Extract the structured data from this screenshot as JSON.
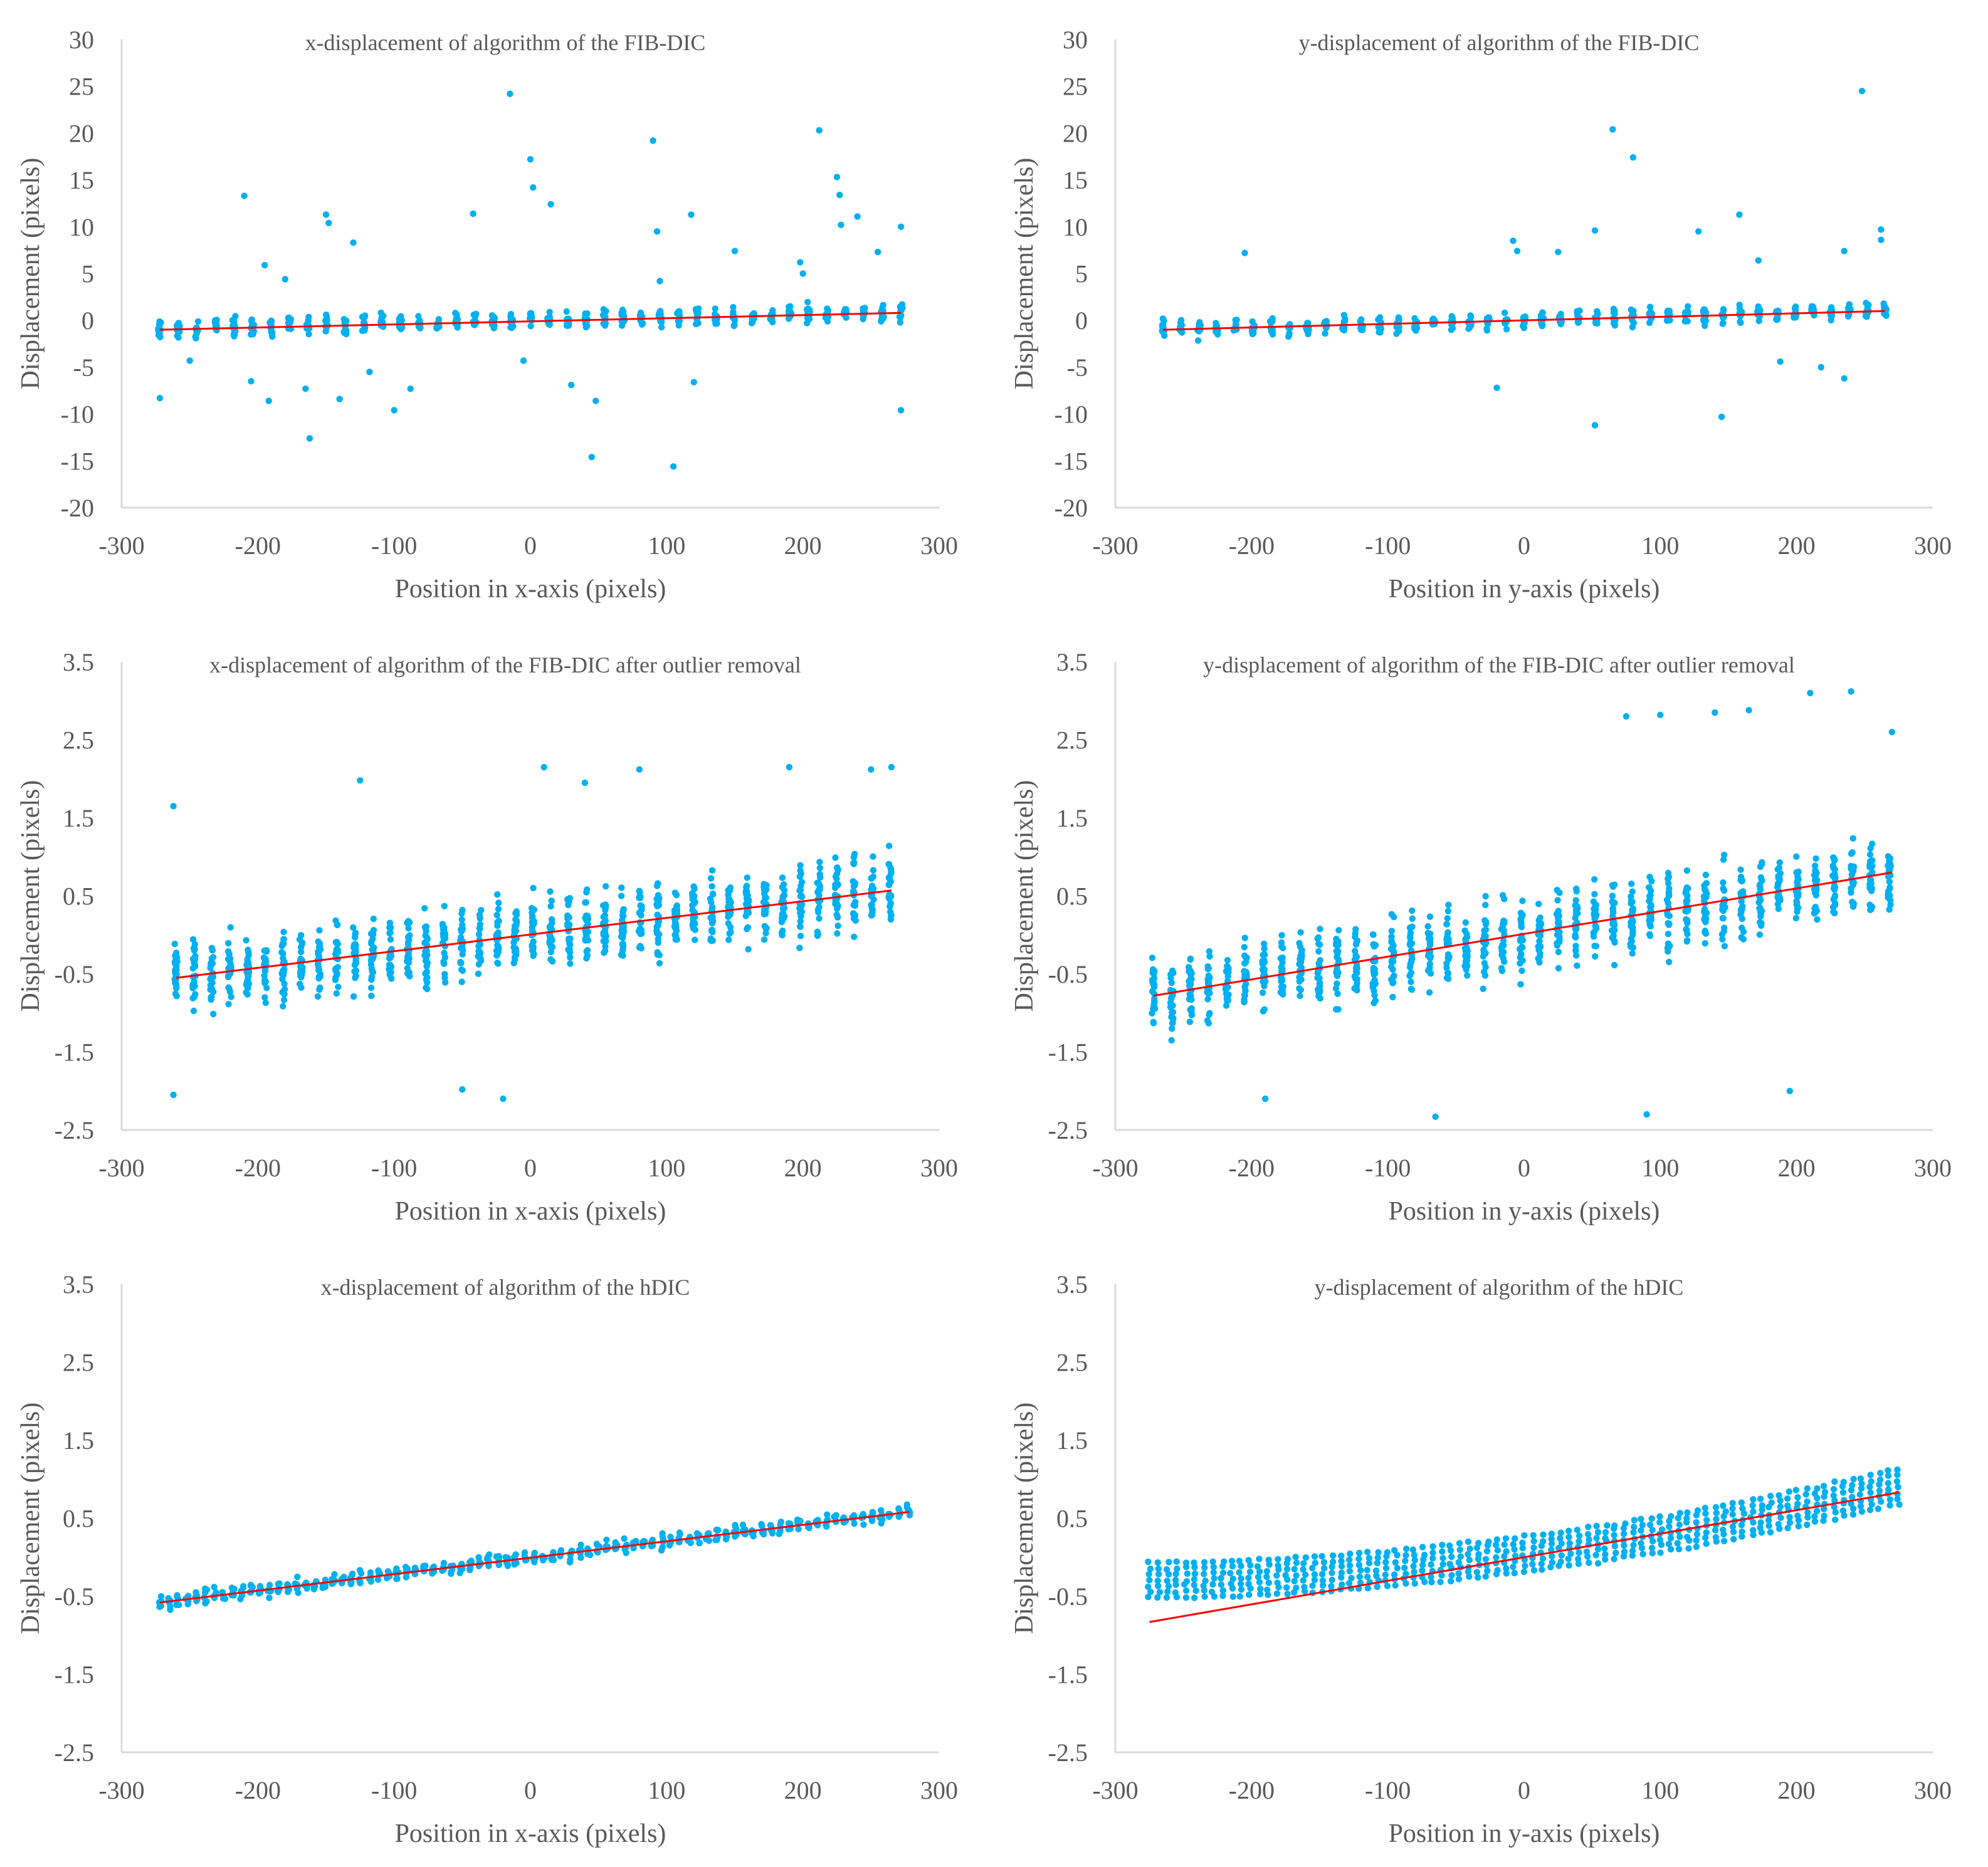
{
  "colors": {
    "points": "#00b0f0",
    "trendline": "#ff0000",
    "axis": "#d9d9d9",
    "text": "#595959"
  },
  "chart_data": [
    {
      "id": "p1",
      "type": "scatter",
      "title": "x-displacement of algorithm of the FIB-DIC",
      "xlabel": "Position in x-axis (pixels)",
      "ylabel": "Displacement  (pixels)",
      "xlim": [
        -300,
        300
      ],
      "ylim": [
        -20,
        30
      ],
      "xticks": [
        -300,
        -200,
        -100,
        0,
        100,
        200,
        300
      ],
      "xtick_labels": [
        "-300",
        "-200",
        "-100",
        "0",
        "100",
        "200",
        "300"
      ],
      "yticks": [
        -20,
        -15,
        -10,
        -5,
        0,
        5,
        10,
        15,
        20,
        25,
        30
      ],
      "ytick_labels": [
        "-20",
        "-15",
        "-10",
        "-5",
        "0",
        "5",
        "10",
        "15",
        "20",
        "25",
        "30"
      ],
      "trendline": {
        "x": [
          -272,
          272
        ],
        "y": [
          -1.0,
          0.8
        ]
      },
      "clusters": {
        "x_start": -272,
        "x_step": 13.6,
        "count": 41,
        "center": "0.0033*x",
        "spread": 1.6,
        "per_column": 12
      },
      "outliers": [
        [
          -272,
          -8.3
        ],
        [
          -250,
          -4.3
        ],
        [
          -210,
          13.3
        ],
        [
          -205,
          -6.5
        ],
        [
          -195,
          5.9
        ],
        [
          -192,
          -8.6
        ],
        [
          -180,
          4.4
        ],
        [
          -165,
          -7.3
        ],
        [
          -162,
          -12.6
        ],
        [
          -150,
          11.3
        ],
        [
          -148,
          10.4
        ],
        [
          -140,
          -8.4
        ],
        [
          -130,
          8.3
        ],
        [
          -118,
          -5.5
        ],
        [
          -100,
          -9.6
        ],
        [
          -88,
          -7.3
        ],
        [
          -42,
          11.4
        ],
        [
          -15,
          24.2
        ],
        [
          -5,
          -4.3
        ],
        [
          0,
          17.2
        ],
        [
          2,
          14.2
        ],
        [
          15,
          12.4
        ],
        [
          30,
          -6.9
        ],
        [
          45,
          -14.6
        ],
        [
          48,
          -8.6
        ],
        [
          90,
          19.2
        ],
        [
          93,
          9.5
        ],
        [
          95,
          4.2
        ],
        [
          105,
          -15.6
        ],
        [
          118,
          11.3
        ],
        [
          120,
          -6.6
        ],
        [
          150,
          7.4
        ],
        [
          198,
          6.2
        ],
        [
          200,
          5.0
        ],
        [
          212,
          20.3
        ],
        [
          225,
          15.3
        ],
        [
          227,
          13.4
        ],
        [
          228,
          10.2
        ],
        [
          240,
          11.1
        ],
        [
          255,
          7.3
        ],
        [
          272,
          10.0
        ],
        [
          272,
          -9.6
        ]
      ]
    },
    {
      "id": "p2",
      "type": "scatter",
      "title": "y-displacement of algorithm of the FIB-DIC",
      "xlabel": "Position in y-axis (pixels)",
      "ylabel": "Displacement  (pixels)",
      "xlim": [
        -300,
        300
      ],
      "ylim": [
        -20,
        30
      ],
      "xticks": [
        -300,
        -200,
        -100,
        0,
        100,
        200,
        300
      ],
      "xtick_labels": [
        "-300",
        "-200",
        "-100",
        "0",
        "100",
        "200",
        "300"
      ],
      "yticks": [
        -20,
        -15,
        -10,
        -5,
        0,
        5,
        10,
        15,
        20,
        25,
        30
      ],
      "ytick_labels": [
        "-20",
        "-15",
        "-10",
        "-5",
        "0",
        "5",
        "10",
        "15",
        "20",
        "25",
        "30"
      ],
      "trendline": {
        "x": [
          -265,
          265
        ],
        "y": [
          -1.0,
          1.0
        ]
      },
      "clusters": {
        "x_start": -265,
        "x_step": 13.25,
        "count": 41,
        "center": "0.0037*x",
        "spread": 1.6,
        "per_column": 12
      },
      "outliers": [
        [
          -205,
          7.2
        ],
        [
          -20,
          -7.2
        ],
        [
          -8,
          8.5
        ],
        [
          -5,
          7.4
        ],
        [
          25,
          7.3
        ],
        [
          52,
          9.6
        ],
        [
          52,
          -11.2
        ],
        [
          65,
          20.4
        ],
        [
          80,
          17.4
        ],
        [
          128,
          9.5
        ],
        [
          145,
          -10.3
        ],
        [
          158,
          11.3
        ],
        [
          172,
          6.4
        ],
        [
          188,
          -4.4
        ],
        [
          218,
          -5.0
        ],
        [
          235,
          7.4
        ],
        [
          235,
          -6.2
        ],
        [
          248,
          24.5
        ],
        [
          262,
          9.7
        ],
        [
          262,
          8.6
        ]
      ]
    },
    {
      "id": "p3",
      "type": "scatter",
      "title": "x-displacement of algorithm of the FIB-DIC  after outlier removal",
      "xlabel": "Position in x-axis (pixels)",
      "ylabel": "Displacement  (pixels)",
      "xlim": [
        -300,
        300
      ],
      "ylim": [
        -2.5,
        3.5
      ],
      "xticks": [
        -300,
        -200,
        -100,
        0,
        100,
        200,
        300
      ],
      "xtick_labels": [
        "-300",
        "-200",
        "-100",
        "0",
        "100",
        "200",
        "300"
      ],
      "yticks": [
        -2.5,
        -1.5,
        -0.5,
        0.5,
        1.5,
        2.5,
        3.5
      ],
      "ytick_labels": [
        "-2.5",
        "-1.5",
        "-0.5",
        "0.5",
        "1.5",
        "2.5",
        "3.5"
      ],
      "trendline": {
        "x": [
          -260,
          265
        ],
        "y": [
          -0.55,
          0.57
        ]
      },
      "clusters": {
        "x_start": -260,
        "x_step": 13.1,
        "count": 41,
        "center": "0.00213*x",
        "spread": 0.75,
        "per_column": 26
      },
      "outliers": [
        [
          -262,
          1.65
        ],
        [
          -262,
          -2.05
        ],
        [
          -125,
          1.98
        ],
        [
          -50,
          -1.98
        ],
        [
          -20,
          -2.1
        ],
        [
          10,
          2.15
        ],
        [
          40,
          1.95
        ],
        [
          80,
          2.12
        ],
        [
          190,
          2.15
        ],
        [
          250,
          2.12
        ],
        [
          265,
          2.15
        ]
      ]
    },
    {
      "id": "p4",
      "type": "scatter",
      "title": "y-displacement of algorithm of the FIB-DIC  after outlier removal",
      "xlabel": "Position in y-axis (pixels)",
      "ylabel": "Displacement  (pixels)",
      "xlim": [
        -300,
        300
      ],
      "ylim": [
        -2.5,
        3.5
      ],
      "xticks": [
        -300,
        -200,
        -100,
        0,
        100,
        200,
        300
      ],
      "xtick_labels": [
        "-300",
        "-200",
        "-100",
        "0",
        "100",
        "200",
        "300"
      ],
      "yticks": [
        -2.5,
        -1.5,
        -0.5,
        0.5,
        1.5,
        2.5,
        3.5
      ],
      "ytick_labels": [
        "-2.5",
        "-1.5",
        "-0.5",
        "0.5",
        "1.5",
        "2.5",
        "3.5"
      ],
      "trendline": {
        "x": [
          -272,
          270
        ],
        "y": [
          -0.78,
          0.8
        ]
      },
      "clusters": {
        "x_start": -272,
        "x_step": 13.5,
        "count": 41,
        "center": "0.0029*x",
        "spread": 0.8,
        "per_column": 26
      },
      "outliers": [
        [
          -65,
          -2.33
        ],
        [
          90,
          -2.3
        ],
        [
          -190,
          -2.1
        ],
        [
          75,
          2.8
        ],
        [
          100,
          2.82
        ],
        [
          140,
          2.85
        ],
        [
          165,
          2.88
        ],
        [
          210,
          3.1
        ],
        [
          240,
          3.12
        ],
        [
          270,
          2.6
        ],
        [
          195,
          -2.0
        ]
      ]
    },
    {
      "id": "p5",
      "type": "scatter",
      "title": "x-displacement of algorithm of the hDIC",
      "xlabel": "Position in x-axis (pixels)",
      "ylabel": "Displacement  (pixels)",
      "xlim": [
        -300,
        300
      ],
      "ylim": [
        -2.5,
        3.5
      ],
      "xticks": [
        -300,
        -200,
        -100,
        0,
        100,
        200,
        300
      ],
      "xtick_labels": [
        "-300",
        "-200",
        "-100",
        "0",
        "100",
        "200",
        "300"
      ],
      "yticks": [
        -2.5,
        -1.5,
        -0.5,
        0.5,
        1.5,
        2.5,
        3.5
      ],
      "ytick_labels": [
        "-2.5",
        "-1.5",
        "-0.5",
        "0.5",
        "1.5",
        "2.5",
        "3.5"
      ],
      "trendline": {
        "x": [
          -272,
          278
        ],
        "y": [
          -0.58,
          0.58
        ]
      },
      "clusters": {
        "x_start": -272,
        "x_step": 6.7,
        "count": 83,
        "center": "0.00211*x",
        "spread": 0.15,
        "per_column": 6
      },
      "outliers": []
    },
    {
      "id": "p6",
      "type": "scatter",
      "title": "y-displacement of algorithm of the hDIC",
      "xlabel": "Position in y-axis (pixels)",
      "ylabel": "Displacement  (pixels)",
      "xlim": [
        -300,
        300
      ],
      "ylim": [
        -2.5,
        3.5
      ],
      "xticks": [
        -300,
        -200,
        -100,
        0,
        100,
        200,
        300
      ],
      "xtick_labels": [
        "-300",
        "-200",
        "-100",
        "0",
        "100",
        "200",
        "300"
      ],
      "yticks": [
        -2.5,
        -1.5,
        -0.5,
        0.5,
        1.5,
        2.5,
        3.5
      ],
      "ytick_labels": [
        "-2.5",
        "-1.5",
        "-0.5",
        "0.5",
        "1.5",
        "2.5",
        "3.5"
      ],
      "trendline": {
        "x": [
          -275,
          275
        ],
        "y": [
          -0.83,
          0.83
        ]
      },
      "clusters": {
        "x_start": -275,
        "x_step": 6.7,
        "count": 83,
        "center": "band",
        "spread": 0.45,
        "per_column": 7
      },
      "outliers": []
    }
  ]
}
